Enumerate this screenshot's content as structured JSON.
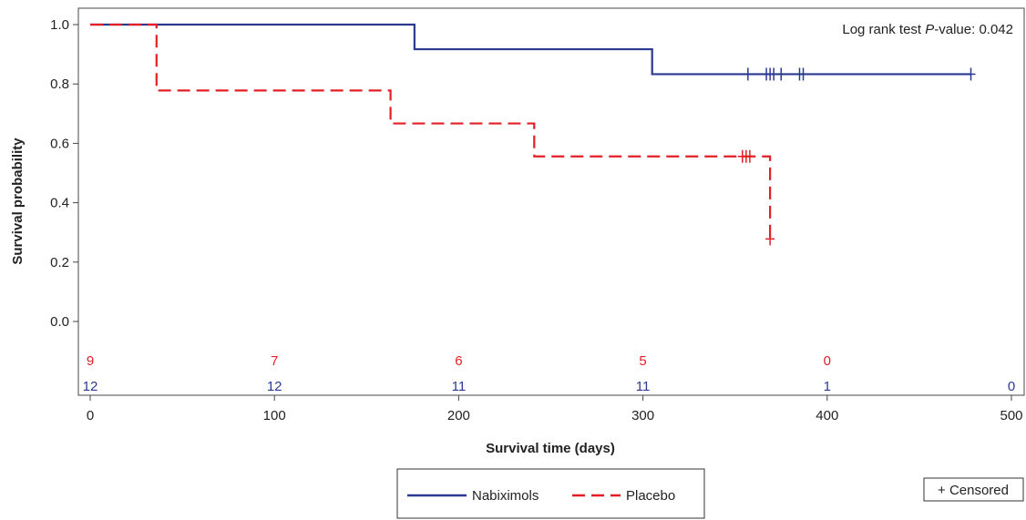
{
  "chart_data": {
    "type": "line",
    "subtype": "kaplan-meier-step",
    "xlabel": "Survival time (days)",
    "ylabel": "Survival probability",
    "xlim": [
      0,
      500
    ],
    "ylim": [
      0,
      1.0
    ],
    "x_ticks": [
      0,
      100,
      200,
      300,
      400,
      500
    ],
    "y_ticks": [
      "0.0",
      "0.2",
      "0.4",
      "0.6",
      "0.8",
      "1.0"
    ],
    "grid": false,
    "annotation": {
      "prefix": "Log rank test ",
      "italic": "P",
      "suffix": "-value: 0.042"
    },
    "series": [
      {
        "name": "Nabiximols",
        "color": "#2b3990",
        "dash": "solid",
        "steps": [
          [
            0,
            1.0
          ],
          [
            176,
            0.917
          ],
          [
            305,
            0.833
          ],
          [
            478,
            0.833
          ]
        ],
        "censored": [
          357,
          367,
          369,
          371,
          375,
          385,
          387,
          478
        ],
        "at_risk": [
          "12",
          "12",
          "11",
          "11",
          "1",
          "0"
        ]
      },
      {
        "name": "Placebo",
        "color": "#e31e24",
        "dash": "dashed",
        "steps": [
          [
            0,
            1.0
          ],
          [
            36,
            0.778
          ],
          [
            163,
            0.667
          ],
          [
            241,
            0.556
          ],
          [
            369,
            0.278
          ]
        ],
        "censored": [
          354,
          356,
          358,
          369
        ],
        "at_risk": [
          "9",
          "7",
          "6",
          "5",
          "0"
        ]
      }
    ],
    "at_risk_x": [
      0,
      100,
      200,
      300,
      400,
      500
    ],
    "legend": {
      "placement": "bottom-center",
      "items": [
        "Nabiximols",
        "Placebo"
      ],
      "censored_label": "+ Censored",
      "censored_placement": "bottom-right"
    }
  }
}
